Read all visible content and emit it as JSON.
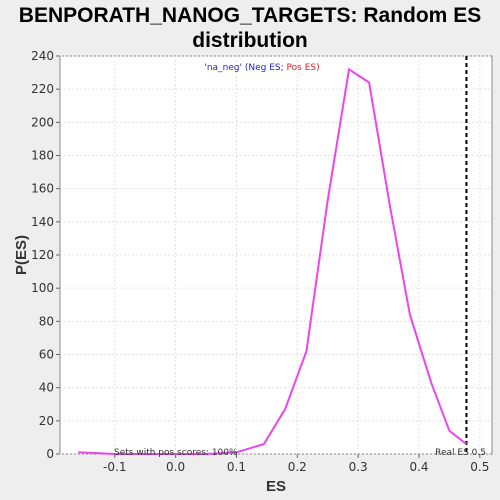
{
  "chart_data": {
    "type": "line",
    "title_line1": "BENPORATH_NANOG_TARGETS: Random ES",
    "title_line2": "distribution",
    "xlabel": "ES",
    "ylabel": "P(ES)",
    "xlim": [
      -0.19,
      0.52
    ],
    "ylim": [
      0,
      240
    ],
    "x_ticks": [
      -0.1,
      0.0,
      0.1,
      0.2,
      0.3,
      0.4,
      0.5
    ],
    "y_ticks": [
      0,
      20,
      40,
      60,
      80,
      100,
      120,
      140,
      160,
      180,
      200,
      220,
      240
    ],
    "grid": true,
    "series": [
      {
        "color": "#ee44ee",
        "x": [
          -0.16,
          -0.1,
          -0.05,
          0.0,
          0.05,
          0.1,
          0.145,
          0.18,
          0.215,
          0.25,
          0.285,
          0.318,
          0.352,
          0.385,
          0.42,
          0.45,
          0.478
        ],
        "y": [
          1,
          0,
          0,
          0,
          0,
          1,
          6,
          27,
          62,
          153,
          232,
          224,
          150,
          84,
          43,
          14,
          6
        ]
      }
    ],
    "legend": {
      "prefix": "'na_neg' (",
      "neg_label": "Neg ES",
      "sep": "; ",
      "pos_label": "Pos ES",
      "suffix": ")",
      "neg_color": "#2222cc",
      "pos_color": "#dd2222",
      "placement": "top-center"
    },
    "annotations": {
      "pos_scores_text": "Sets with pos scores: 100%",
      "real_es_text": "Real ES 0.5",
      "real_es_value": 0.478
    }
  }
}
